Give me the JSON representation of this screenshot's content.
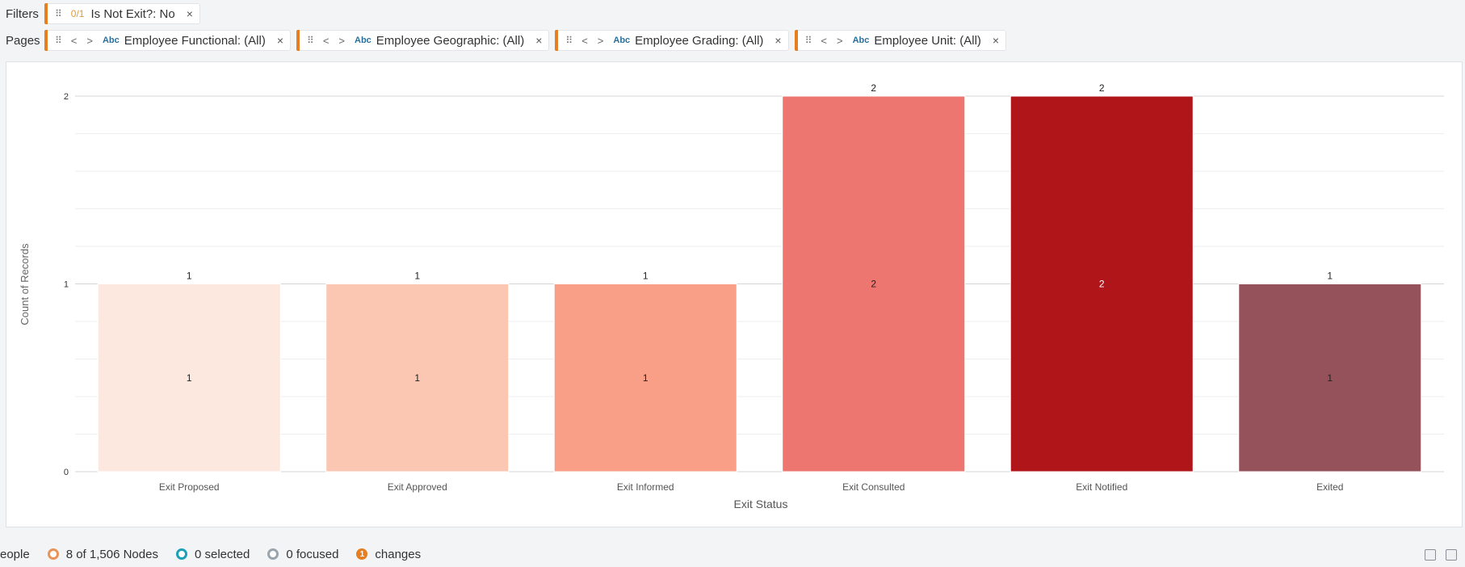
{
  "filters": {
    "label": "Filters",
    "chip": {
      "ratio": "0/1",
      "text": "Is Not Exit?: No"
    }
  },
  "pages": {
    "label": "Pages",
    "chips": [
      {
        "type": "Abc",
        "text": "Employee Functional: (All)"
      },
      {
        "type": "Abc",
        "text": "Employee Geographic: (All)"
      },
      {
        "type": "Abc",
        "text": "Employee Grading: (All)"
      },
      {
        "type": "Abc",
        "text": "Employee Unit: (All)"
      }
    ]
  },
  "chart_data": {
    "type": "bar",
    "title": "",
    "xlabel": "Exit Status",
    "ylabel": "Count of Records",
    "ylim": [
      0,
      2
    ],
    "yticks": [
      "0",
      "1",
      "2"
    ],
    "categories": [
      "Exit Proposed",
      "Exit Approved",
      "Exit Informed",
      "Exit Consulted",
      "Exit Notified",
      "Exited"
    ],
    "values": [
      1,
      1,
      1,
      2,
      2,
      1
    ],
    "top_labels": [
      "1",
      "1",
      "1",
      "2",
      "2",
      "1"
    ],
    "inner_labels": [
      "1",
      "1",
      "1",
      "2",
      "2",
      "1"
    ],
    "colors": [
      "#fde8e0",
      "#fbc6b2",
      "#f99f87",
      "#ee7670",
      "#b0151a",
      "#96525b"
    ],
    "grid": true
  },
  "status": {
    "people": "eople",
    "nodes": "8 of 1,506 Nodes",
    "selected": "0 selected",
    "focused": "0 focused",
    "changes_count": "1",
    "changes": "changes"
  }
}
